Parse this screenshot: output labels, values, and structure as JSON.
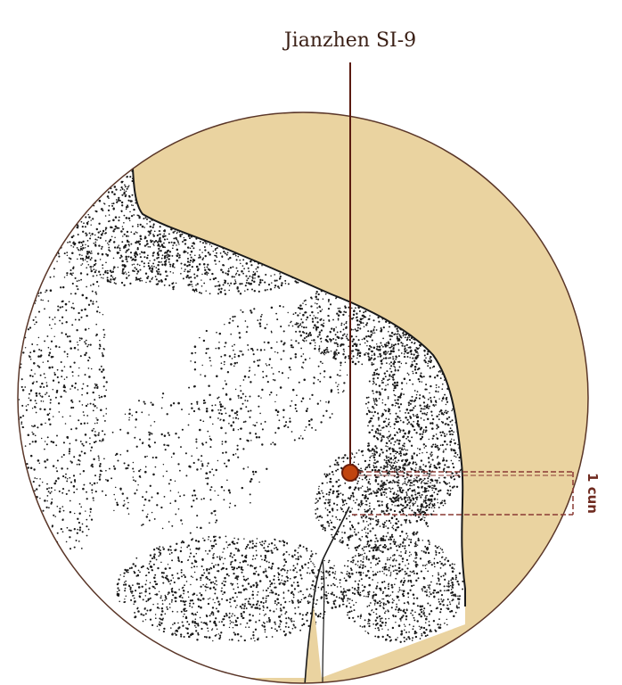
{
  "point": {
    "name": "Jianzhen SI-9"
  },
  "measurement": {
    "label": "1 cun"
  },
  "colors": {
    "background_skin": "#ead3a0",
    "outline": "#5a3628",
    "leader_line": "#5a1a10",
    "point_fill": "#c1440e",
    "point_stroke": "#6b1d0a",
    "measure_dashes": "#8a3a34",
    "stipple": "#1a1a1a"
  },
  "icons": {
    "point_marker": "acupoint-marker-icon"
  }
}
